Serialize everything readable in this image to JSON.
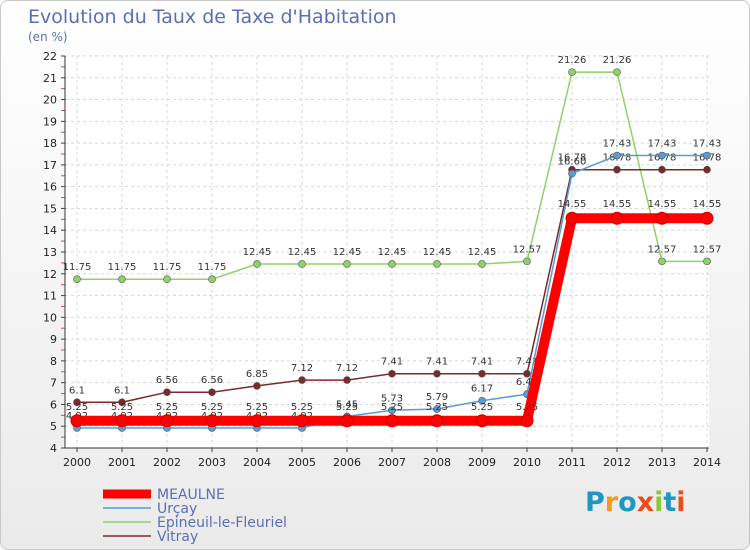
{
  "title": "Evolution du Taux de Taxe d'Habitation",
  "unit_label": "(en %)",
  "logo": {
    "text": "Proxiti",
    "colors": [
      "#1f97c4",
      "#f29b1f",
      "#1f97c4",
      "#e94e1b",
      "#8cc63f",
      "#1f97c4",
      "#e94e1b"
    ]
  },
  "chart_data": {
    "type": "line",
    "title": "Evolution du Taux de Taxe d'Habitation",
    "ylabel": "(en %)",
    "xlabel": "",
    "ylim": [
      4,
      22
    ],
    "yticks": [
      4,
      5,
      6,
      7,
      8,
      9,
      10,
      11,
      12,
      13,
      14,
      15,
      16,
      17,
      18,
      19,
      20,
      21,
      22
    ],
    "x": [
      "2000",
      "2001",
      "2002",
      "2003",
      "2004",
      "2005",
      "2006",
      "2007",
      "2008",
      "2009",
      "2010",
      "2011",
      "2012",
      "2013",
      "2014"
    ],
    "grid": true,
    "legend_position": "bottom-left",
    "series": [
      {
        "name": "MEAULNE",
        "color": "#ff0000",
        "values": [
          5.25,
          5.25,
          5.25,
          5.25,
          5.25,
          5.25,
          5.25,
          5.25,
          5.25,
          5.25,
          5.25,
          14.55,
          14.55,
          14.55,
          14.55
        ],
        "labels": [
          "5.25",
          "5.25",
          "5.25",
          "5.25",
          "5.25",
          "5.25",
          "5.25",
          "5.25",
          "5.25",
          "5.25",
          "5.25",
          "14.55",
          "14.55",
          "14.55",
          "14.55"
        ]
      },
      {
        "name": "Urçay",
        "color": "#5b9bd5",
        "values": [
          4.92,
          4.92,
          4.92,
          4.92,
          4.92,
          4.92,
          5.45,
          5.73,
          5.79,
          6.17,
          6.47,
          16.6,
          17.43,
          17.43,
          17.43
        ],
        "labels": [
          "4.92",
          "4.92",
          "4.92",
          "4.92",
          "4.92",
          "4.92",
          "5.45",
          "5.73",
          "5.79",
          "6.17",
          "6.47",
          "16.60",
          "17.43",
          "17.43",
          "17.43"
        ]
      },
      {
        "name": "Epineuil-le-Fleuriel",
        "color": "#8fd16a",
        "values": [
          11.75,
          11.75,
          11.75,
          11.75,
          12.45,
          12.45,
          12.45,
          12.45,
          12.45,
          12.45,
          12.57,
          21.26,
          21.26,
          12.57,
          12.57
        ],
        "labels": [
          "11.75",
          "11.75",
          "11.75",
          "11.75",
          "12.45",
          "12.45",
          "12.45",
          "12.45",
          "12.45",
          "12.45",
          "12.57",
          "21.26",
          "21.26",
          "12.57",
          "12.57"
        ]
      },
      {
        "name": "Vitray",
        "color": "#7a2a2a",
        "values": [
          6.1,
          6.1,
          6.56,
          6.56,
          6.85,
          7.12,
          7.12,
          7.41,
          7.41,
          7.41,
          7.41,
          16.78,
          16.78,
          16.78,
          16.78
        ],
        "labels": [
          "6.1",
          "6.1",
          "6.56",
          "6.56",
          "6.85",
          "7.12",
          "7.12",
          "7.41",
          "7.41",
          "7.41",
          "7.41",
          "16.78",
          "16.78",
          "16.78",
          "16.78"
        ]
      }
    ]
  }
}
